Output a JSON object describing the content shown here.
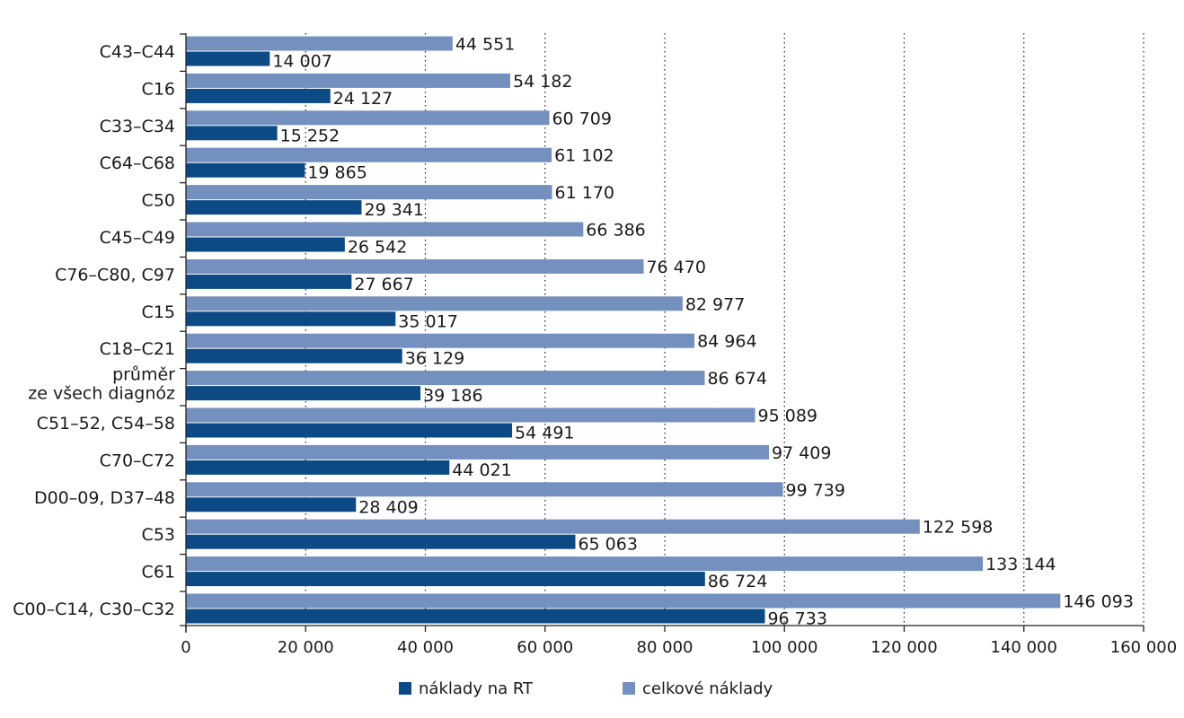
{
  "chart_data": {
    "type": "bar",
    "orientation": "horizontal",
    "categories": [
      "C43–C44",
      "C16",
      "C33–C34",
      "C64–C68",
      "C50",
      "C45–C49",
      "C76–C80, C97",
      "C15",
      "C18–C21",
      [
        "průměr",
        "ze všech diagnóz"
      ],
      "C51–52, C54–58",
      "C70–C72",
      "D00–09, D37–48",
      "C53",
      "C61",
      "C00–C14, C30–C32"
    ],
    "series": [
      {
        "name": "celkové náklady",
        "color": "#7390bf",
        "values": [
          44551,
          54182,
          60709,
          61102,
          61170,
          66386,
          76470,
          82977,
          84964,
          86674,
          95089,
          97409,
          99739,
          122598,
          133144,
          146093
        ],
        "labels": [
          "44 551",
          "54 182",
          "60 709",
          "61 102",
          "61 170",
          "66 386",
          "76 470",
          "82 977",
          "84 964",
          "86 674",
          "95 089",
          "97 409",
          "99 739",
          "122 598",
          "133 144",
          "146 093"
        ]
      },
      {
        "name": "náklady na RT",
        "color": "#0b4a84",
        "values": [
          14007,
          24127,
          15252,
          19865,
          29341,
          26542,
          27667,
          35017,
          36129,
          39186,
          54491,
          44021,
          28409,
          65063,
          86724,
          96733
        ],
        "labels": [
          "14 007",
          "24 127",
          "15 252",
          "19 865",
          "29 341",
          "26 542",
          "27 667",
          "35 017",
          "36 129",
          "39 186",
          "54 491",
          "44 021",
          "28 409",
          "65 063",
          "86 724",
          "96 733"
        ]
      }
    ],
    "xlim": [
      0,
      160000
    ],
    "xticks": [
      0,
      20000,
      40000,
      60000,
      80000,
      100000,
      120000,
      140000,
      160000
    ],
    "xtick_labels": [
      "0",
      "20 000",
      "40 000",
      "60 000",
      "80 000",
      "100 000",
      "120 000",
      "140 000",
      "160 000"
    ],
    "grid": "vertical dotted",
    "legend": {
      "position": "bottom",
      "items": [
        {
          "label": "náklady na RT",
          "color": "#0b4a84"
        },
        {
          "label": "celkové náklady",
          "color": "#7390bf"
        }
      ]
    }
  }
}
